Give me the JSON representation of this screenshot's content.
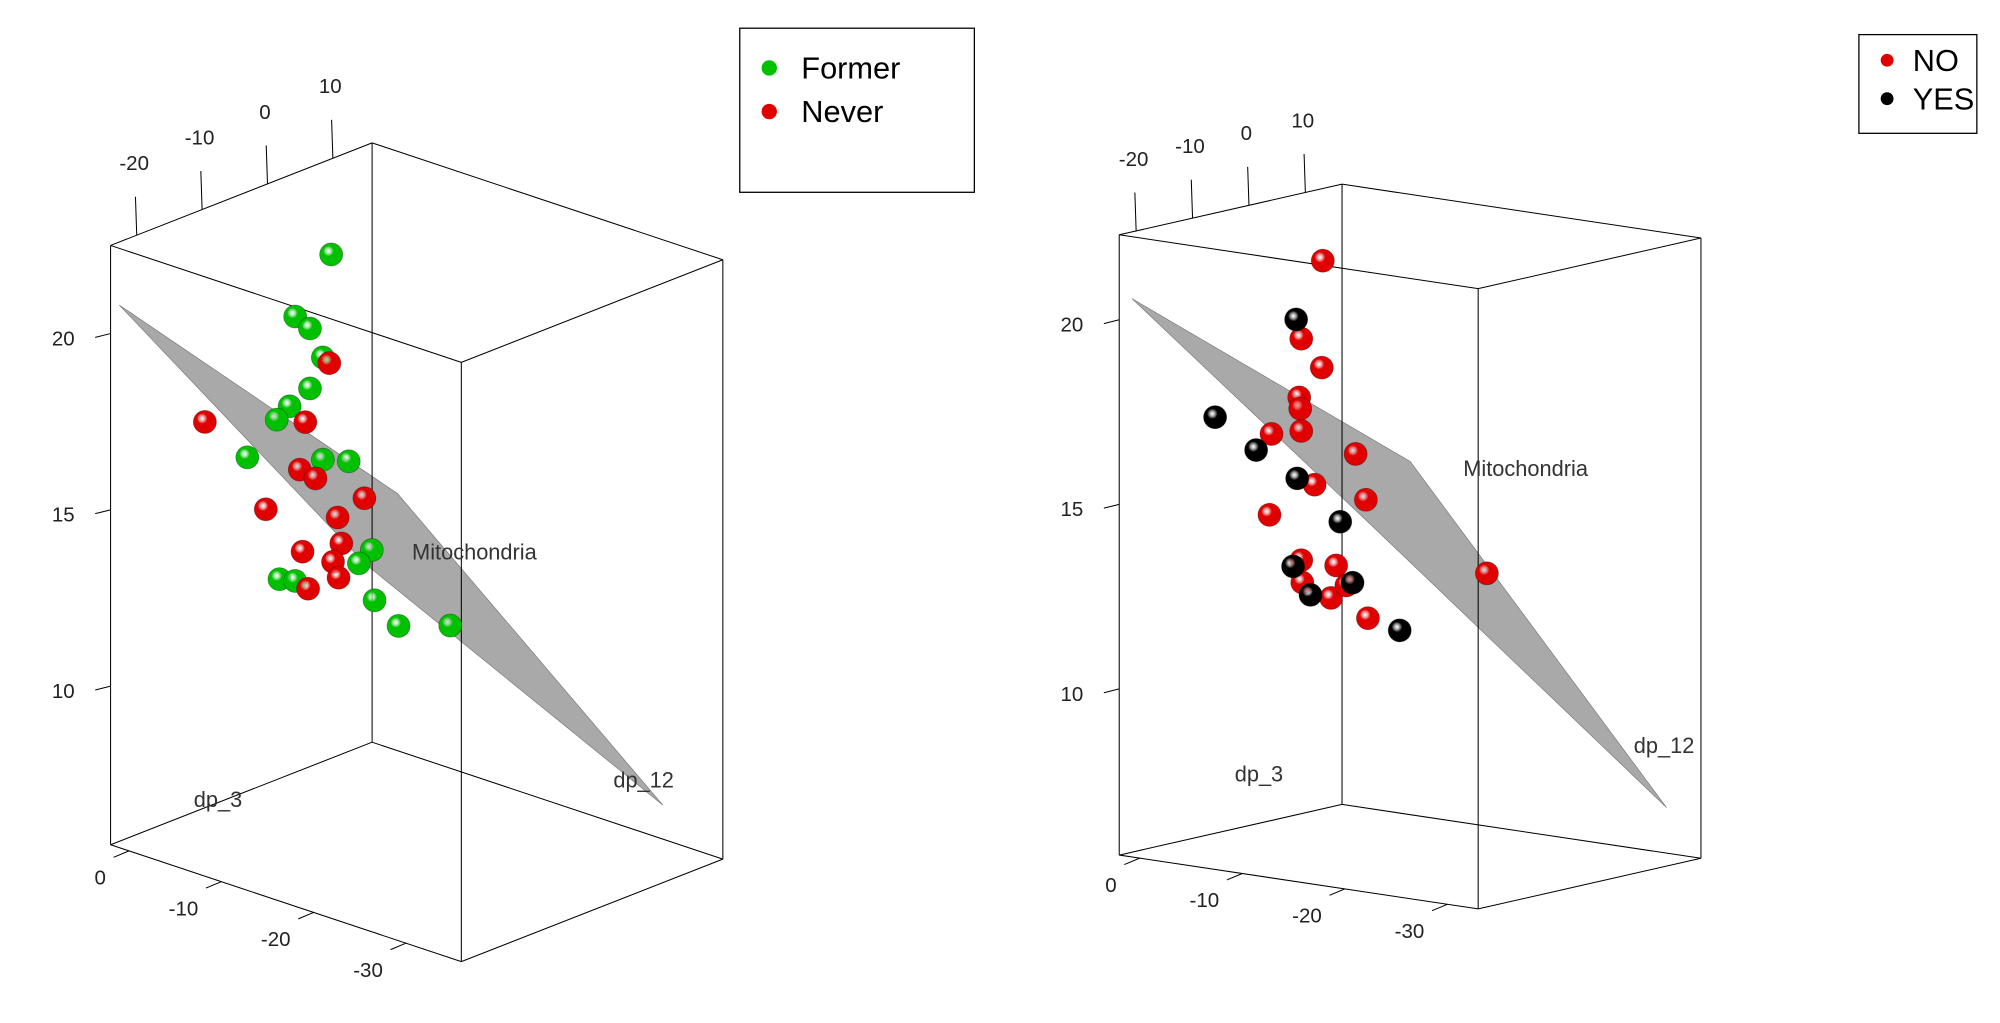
{
  "chart_data": [
    {
      "type": "scatter3d",
      "xlabel": "dp_3",
      "ylabel": "Mitochondria",
      "zlabel": "dp_12",
      "xlim": [
        2,
        -36
      ],
      "ylim": [
        5.5,
        22.5
      ],
      "zlim": [
        -24,
        16
      ],
      "xticks": [
        0,
        -10,
        -20,
        -30
      ],
      "yticks": [
        10,
        15,
        20
      ],
      "zticks": [
        -20,
        -10,
        0,
        10
      ],
      "series": [
        {
          "name": "Former",
          "color": "#00c000",
          "x": [
            -4.9,
            -1.0,
            -2.6,
            -4.0,
            -2.6,
            -0.4,
            1.0,
            -2.9,
            -4.0,
            -6.8,
            -9.3,
            -7.9,
            0.7,
            -1.0,
            -9.6,
            -12.2,
            -17.8
          ],
          "y": [
            21.1,
            19.0,
            18.8,
            18.1,
            17.1,
            16.4,
            15.9,
            15.9,
            15.2,
            15.4,
            13.1,
            12.6,
            11.4,
            11.5,
            11.7,
            11.2,
            11.7
          ],
          "z": [
            0,
            0,
            0,
            0,
            0,
            0,
            0,
            -10,
            0,
            0,
            0,
            0,
            0,
            0,
            0,
            0,
            0
          ]
        },
        {
          "name": "Never",
          "color": "#e00000",
          "x": [
            -4.7,
            1.7,
            -2.1,
            -1.5,
            -3.2,
            -8.5,
            -4.9,
            -5.6,
            -1.8,
            -6.0,
            -5.1,
            -5.7,
            -2.4
          ],
          "y": [
            18.0,
            16.5,
            16.1,
            14.7,
            14.6,
            14.5,
            14.6,
            13.7,
            12.4,
            13.0,
            12.4,
            12.0,
            11.4
          ],
          "z": [
            0,
            -10,
            0,
            0,
            0,
            0,
            -10,
            0,
            0,
            0,
            0,
            0,
            0
          ]
        }
      ]
    },
    {
      "type": "scatter3d",
      "xlabel": "dp_3",
      "ylabel": "Mitochondria",
      "zlabel": "dp_12",
      "xlim": [
        2,
        -33
      ],
      "ylim": [
        5.5,
        22.3
      ],
      "zlim": [
        -23,
        16.5
      ],
      "xticks": [
        0,
        -10,
        -20,
        -30
      ],
      "yticks": [
        10,
        15,
        20
      ],
      "zticks": [
        -20,
        -10,
        0,
        10
      ],
      "series": [
        {
          "name": "NO",
          "color": "#e00000",
          "x": [
            -5.2,
            -3.1,
            -5.1,
            -2.9,
            -3.0,
            -3.1,
            -0.2,
            -8.4,
            -4.4,
            -9.4,
            0.0,
            -6.5,
            -3.1,
            -3.2,
            -6.0,
            -7.5,
            -9.6,
            -21.2
          ],
          "y": [
            21.1,
            18.9,
            18.2,
            17.3,
            17.0,
            16.4,
            16.2,
            16.0,
            15.0,
            14.8,
            14.0,
            12.9,
            12.9,
            12.3,
            12.0,
            12.4,
            11.6,
            13.3
          ],
          "z": [
            0,
            0,
            0,
            0,
            0,
            0,
            0,
            0,
            0,
            0,
            0,
            0,
            0,
            0,
            0,
            0,
            0,
            0
          ]
        },
        {
          "name": "YES",
          "color": "#000000",
          "x": [
            -2.6,
            -0.2,
            1.3,
            -2.7,
            -6.9,
            -2.3,
            -8.1,
            -4.0,
            -12.7
          ],
          "y": [
            19.4,
            17.0,
            15.7,
            15.1,
            14.1,
            12.7,
            12.5,
            12.0,
            11.4
          ],
          "z": [
            0,
            -10,
            0,
            0,
            0,
            0,
            0,
            0,
            0
          ]
        }
      ]
    }
  ]
}
